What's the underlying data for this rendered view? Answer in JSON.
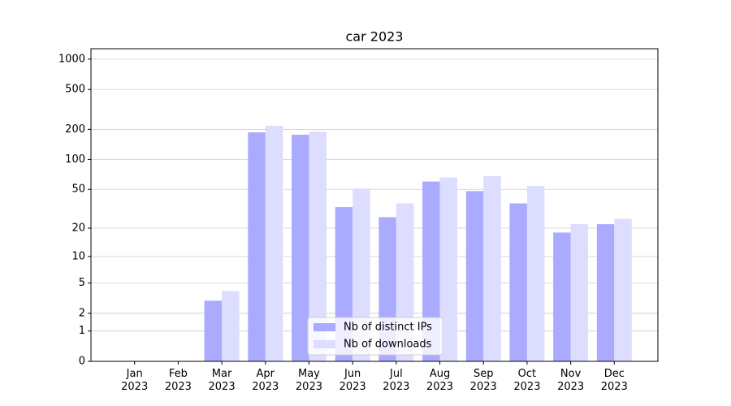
{
  "chart_data": {
    "type": "bar",
    "title": "car 2023",
    "categories": [
      "Jan\n2023",
      "Feb\n2023",
      "Mar\n2023",
      "Apr\n2023",
      "May\n2023",
      "Jun\n2023",
      "Jul\n2023",
      "Aug\n2023",
      "Sep\n2023",
      "Oct\n2023",
      "Nov\n2023",
      "Dec\n2023"
    ],
    "series": [
      {
        "name": "Nb of distinct IPs",
        "color": "#aaaaff",
        "values": [
          0,
          0,
          3,
          187,
          177,
          33,
          26,
          60,
          48,
          36,
          18,
          22
        ]
      },
      {
        "name": "Nb of downloads",
        "color": "#ddddff",
        "values": [
          0,
          0,
          4,
          217,
          190,
          51,
          36,
          66,
          68,
          54,
          22,
          25
        ]
      }
    ],
    "y_scale": "log1p",
    "ylim": [
      0,
      1270
    ],
    "yticks": [
      0,
      1,
      2,
      5,
      10,
      20,
      50,
      100,
      200,
      500,
      1000
    ],
    "grid": true,
    "legend": "lower center"
  }
}
